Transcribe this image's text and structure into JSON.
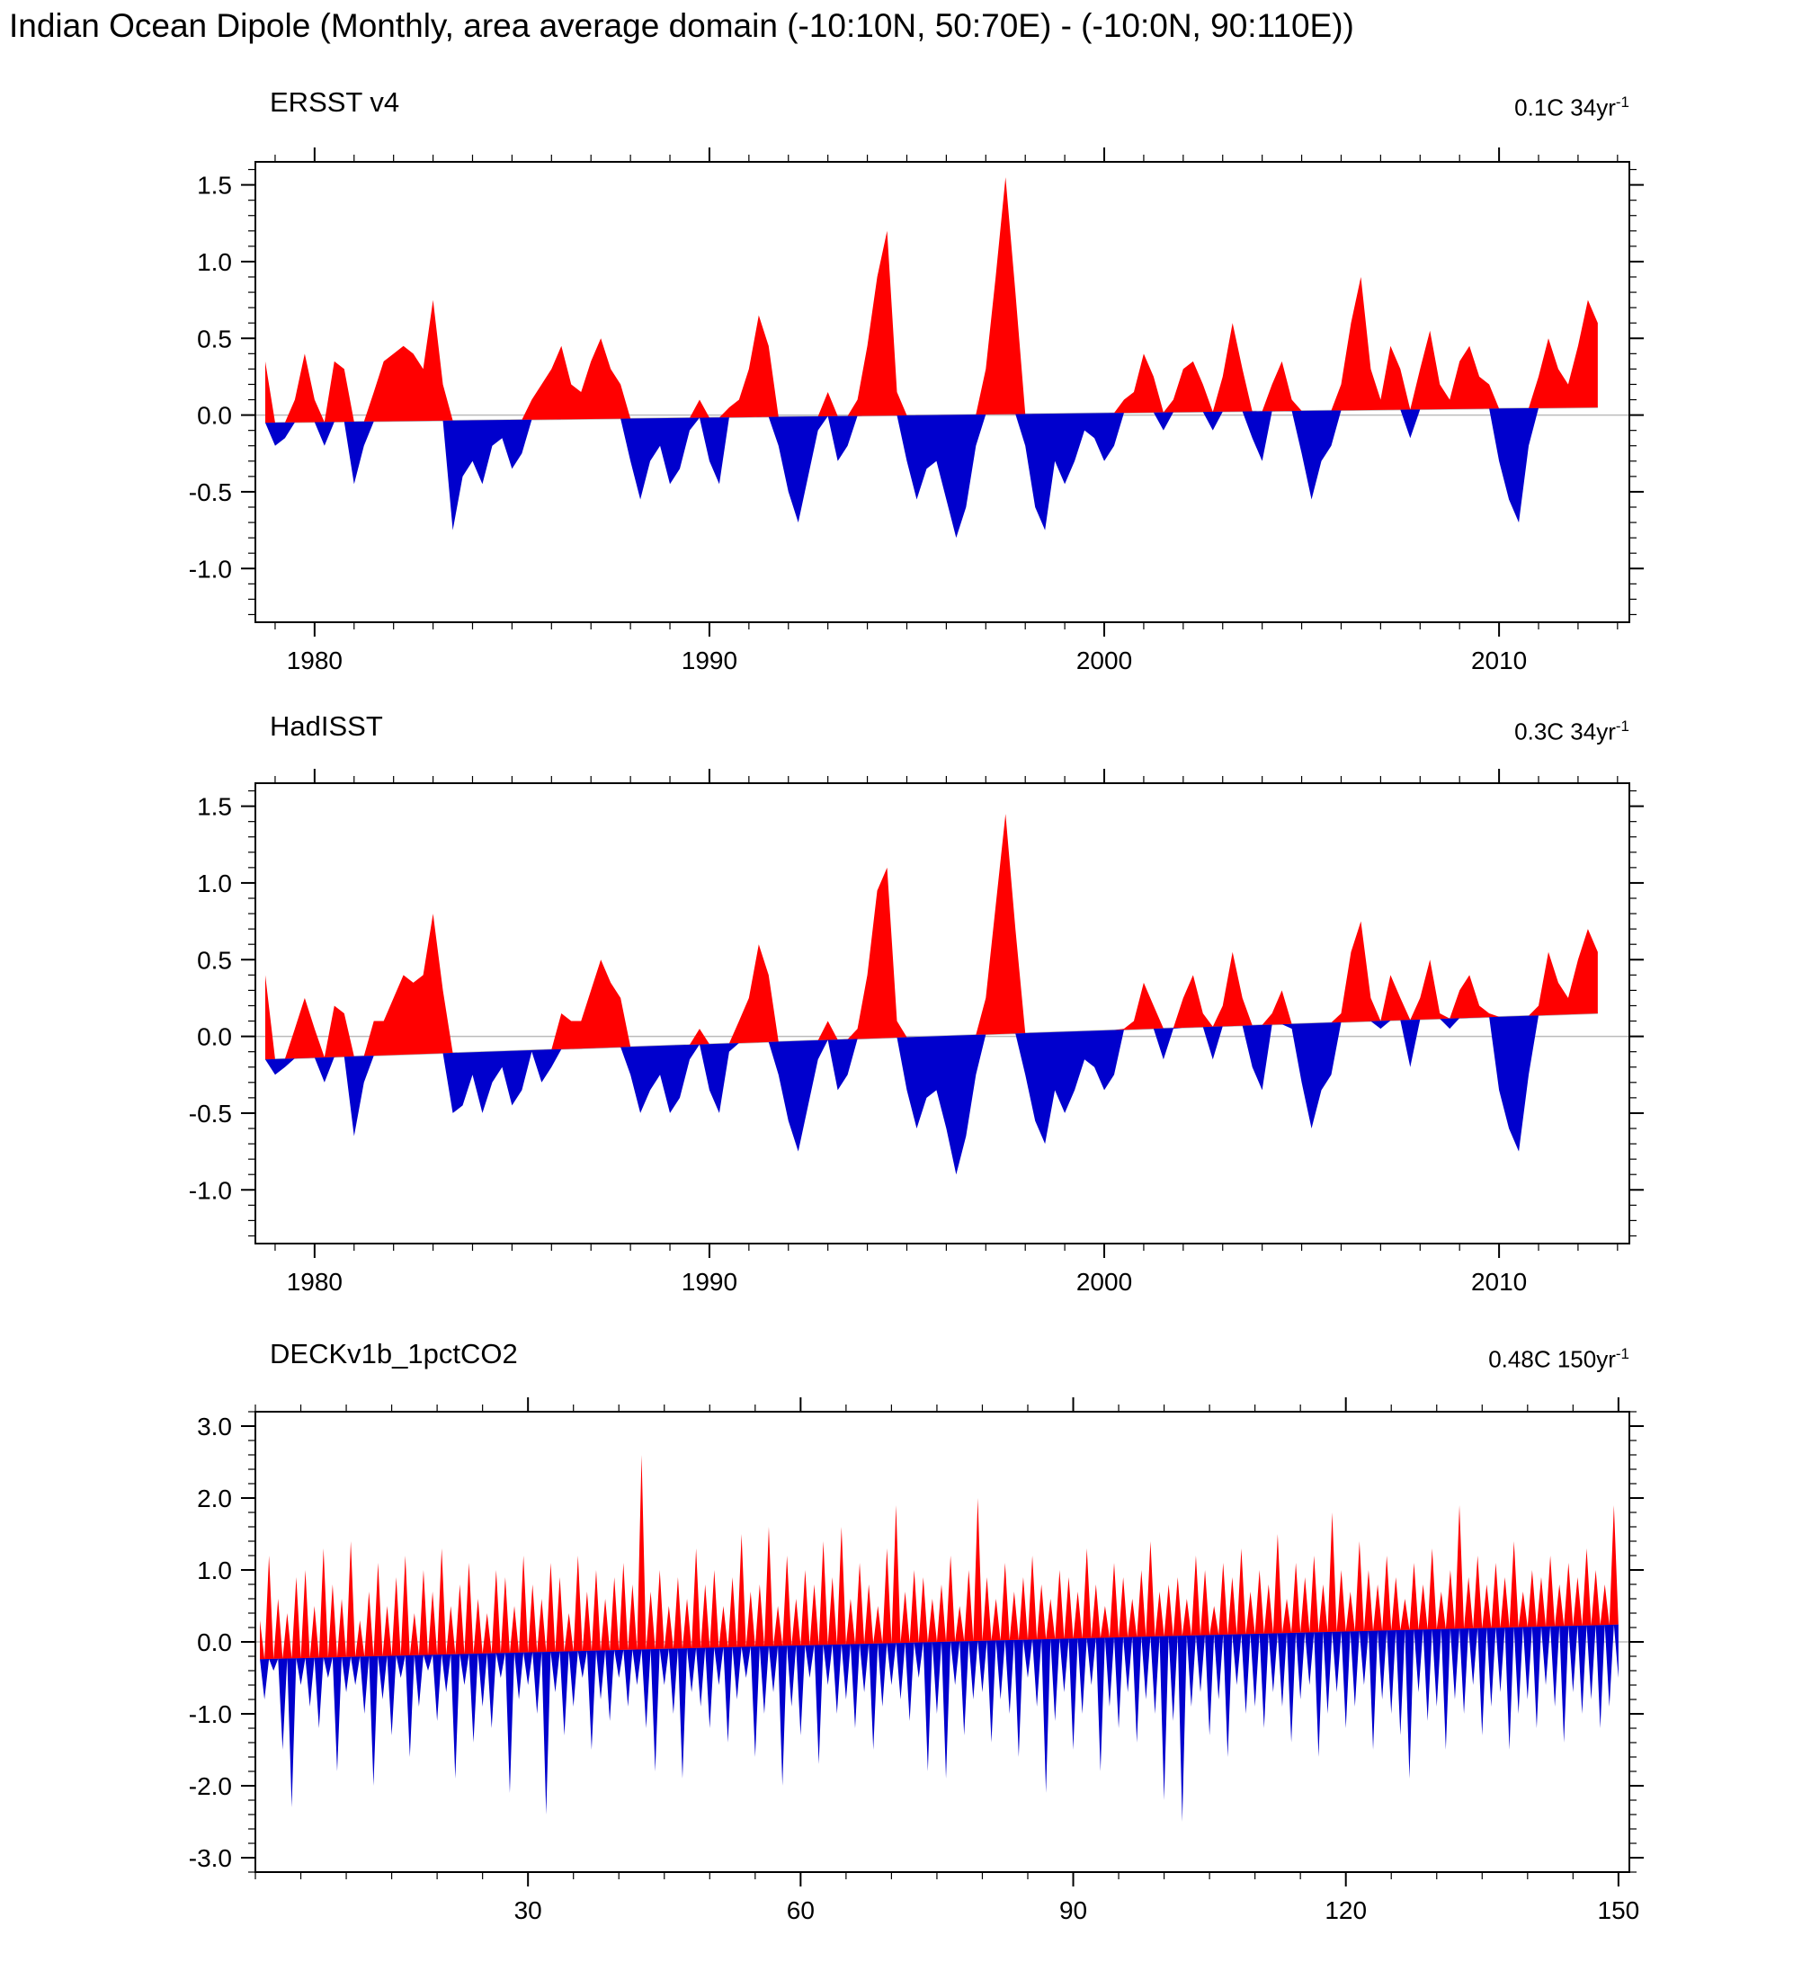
{
  "page_title": "Indian Ocean Dipole (Monthly, area average domain (-10:10N, 50:70E) - (-10:0N, 90:110E))",
  "colors": {
    "positive": "#ff0000",
    "negative": "#0000cd",
    "axis": "#000000",
    "reference_line": "#bbbbbb"
  },
  "chart_data": [
    {
      "type": "area",
      "title": "ERSST v4",
      "trend_label": "0.1C 34yr",
      "trend_sup": "-1",
      "trend_total": 0.1,
      "x_start": 1978.75,
      "x_step": 0.25,
      "xlim": [
        1978.5,
        2013.3
      ],
      "ylim": [
        -1.35,
        1.65
      ],
      "x_ticks": [
        1980,
        1990,
        2000,
        2010
      ],
      "x_tick_labels": [
        "1980",
        "1990",
        "2000",
        "2010"
      ],
      "x_minor_step": 1,
      "y_ticks": [
        -1.0,
        -0.5,
        0.0,
        0.5,
        1.0,
        1.5
      ],
      "y_tick_labels": [
        "-1.0",
        "-0.5",
        "0.0",
        "0.5",
        "1.0",
        "1.5"
      ],
      "y_minor_step": 0.1,
      "values": [
        0.35,
        -0.2,
        -0.15,
        0.1,
        0.4,
        0.1,
        -0.2,
        0.35,
        0.3,
        -0.45,
        -0.2,
        0.15,
        0.35,
        0.4,
        0.45,
        0.4,
        0.3,
        0.75,
        0.2,
        -0.75,
        -0.4,
        -0.3,
        -0.45,
        -0.2,
        -0.15,
        -0.35,
        -0.25,
        0.1,
        0.2,
        0.3,
        0.45,
        0.2,
        0.15,
        0.35,
        0.5,
        0.3,
        0.2,
        -0.3,
        -0.55,
        -0.3,
        -0.2,
        -0.45,
        -0.35,
        -0.1,
        0.1,
        -0.3,
        -0.45,
        0.05,
        0.1,
        0.3,
        0.65,
        0.45,
        -0.2,
        -0.5,
        -0.7,
        -0.4,
        -0.1,
        0.15,
        -0.3,
        -0.2,
        0.1,
        0.45,
        0.9,
        1.2,
        0.15,
        -0.3,
        -0.55,
        -0.35,
        -0.3,
        -0.55,
        -0.8,
        -0.6,
        -0.2,
        0.3,
        0.9,
        1.55,
        0.8,
        -0.2,
        -0.6,
        -0.75,
        -0.3,
        -0.45,
        -0.3,
        -0.1,
        -0.15,
        -0.3,
        -0.2,
        0.1,
        0.15,
        0.4,
        0.25,
        -0.1,
        0.1,
        0.3,
        0.35,
        0.2,
        -0.1,
        0.25,
        0.6,
        0.3,
        -0.15,
        -0.3,
        0.2,
        0.35,
        0.1,
        -0.25,
        -0.55,
        -0.3,
        -0.2,
        0.2,
        0.6,
        0.9,
        0.3,
        0.1,
        0.45,
        0.3,
        -0.15,
        0.3,
        0.55,
        0.2,
        0.1,
        0.35,
        0.45,
        0.25,
        0.2,
        -0.3,
        -0.55,
        -0.7,
        -0.2,
        0.25,
        0.5,
        0.3,
        0.2,
        0.45,
        0.75,
        0.6
      ]
    },
    {
      "type": "area",
      "title": "HadISST",
      "trend_label": "0.3C 34yr",
      "trend_sup": "-1",
      "trend_total": 0.3,
      "x_start": 1978.75,
      "x_step": 0.25,
      "xlim": [
        1978.5,
        2013.3
      ],
      "ylim": [
        -1.35,
        1.65
      ],
      "x_ticks": [
        1980,
        1990,
        2000,
        2010
      ],
      "x_tick_labels": [
        "1980",
        "1990",
        "2000",
        "2010"
      ],
      "x_minor_step": 1,
      "y_ticks": [
        -1.0,
        -0.5,
        0.0,
        0.5,
        1.0,
        1.5
      ],
      "y_tick_labels": [
        "-1.0",
        "-0.5",
        "0.0",
        "0.5",
        "1.0",
        "1.5"
      ],
      "y_minor_step": 0.1,
      "values": [
        0.4,
        -0.25,
        -0.2,
        0.05,
        0.25,
        0.05,
        -0.3,
        0.2,
        0.15,
        -0.65,
        -0.3,
        0.1,
        0.1,
        0.25,
        0.4,
        0.35,
        0.4,
        0.8,
        0.3,
        -0.5,
        -0.45,
        -0.25,
        -0.5,
        -0.3,
        -0.2,
        -0.45,
        -0.35,
        -0.1,
        -0.3,
        -0.2,
        0.15,
        0.1,
        0.1,
        0.3,
        0.5,
        0.35,
        0.25,
        -0.25,
        -0.5,
        -0.35,
        -0.25,
        -0.5,
        -0.4,
        -0.15,
        0.05,
        -0.35,
        -0.5,
        -0.1,
        0.1,
        0.25,
        0.6,
        0.4,
        -0.25,
        -0.55,
        -0.75,
        -0.45,
        -0.15,
        0.1,
        -0.35,
        -0.25,
        0.05,
        0.4,
        0.95,
        1.1,
        0.1,
        -0.35,
        -0.6,
        -0.4,
        -0.35,
        -0.6,
        -0.9,
        -0.65,
        -0.25,
        0.25,
        0.85,
        1.45,
        0.7,
        -0.25,
        -0.55,
        -0.7,
        -0.35,
        -0.5,
        -0.35,
        -0.15,
        -0.2,
        -0.35,
        -0.25,
        0.05,
        0.1,
        0.35,
        0.2,
        -0.15,
        0.05,
        0.25,
        0.4,
        0.15,
        -0.15,
        0.2,
        0.55,
        0.25,
        -0.2,
        -0.35,
        0.15,
        0.3,
        0.05,
        -0.3,
        -0.6,
        -0.35,
        -0.25,
        0.15,
        0.55,
        0.75,
        0.25,
        0.05,
        0.4,
        0.25,
        -0.2,
        0.25,
        0.5,
        0.15,
        0.05,
        0.3,
        0.4,
        0.2,
        0.15,
        -0.35,
        -0.6,
        -0.75,
        -0.25,
        0.2,
        0.55,
        0.35,
        0.25,
        0.5,
        0.7,
        0.55
      ]
    },
    {
      "type": "area",
      "title": "DECKv1b_1pctCO2",
      "trend_label": "0.48C 150yr",
      "trend_sup": "-1",
      "trend_total": 0.48,
      "x_start": 0.5,
      "x_step": 0.5,
      "xlim": [
        0,
        151.2
      ],
      "ylim": [
        -3.2,
        3.2
      ],
      "x_ticks": [
        30,
        60,
        90,
        120,
        150
      ],
      "x_tick_labels": [
        "30",
        "60",
        "90",
        "120",
        "150"
      ],
      "x_minor_step": 5,
      "y_ticks": [
        -3.0,
        -2.0,
        -1.0,
        0.0,
        1.0,
        2.0,
        3.0
      ],
      "y_tick_labels": [
        "-3.0",
        "-2.0",
        "-1.0",
        "0.0",
        "1.0",
        "2.0",
        "3.0"
      ],
      "y_minor_step": 0.2,
      "values": [
        0.3,
        -0.8,
        1.2,
        -0.4,
        0.6,
        -1.5,
        0.4,
        -2.3,
        0.9,
        -0.6,
        1.0,
        -0.9,
        0.5,
        -1.2,
        1.3,
        -0.5,
        0.8,
        -1.8,
        0.6,
        -0.7,
        1.4,
        -0.6,
        0.3,
        -1.0,
        0.7,
        -2.0,
        1.1,
        -0.8,
        0.5,
        -1.3,
        0.9,
        -0.5,
        1.2,
        -1.6,
        0.4,
        -0.9,
        1.0,
        -0.4,
        0.7,
        -1.1,
        1.3,
        -0.7,
        0.5,
        -1.9,
        0.8,
        -0.6,
        1.1,
        -1.4,
        0.6,
        -0.9,
        0.4,
        -1.2,
        1.0,
        -0.5,
        0.9,
        -2.1,
        0.5,
        -0.8,
        1.2,
        -0.6,
        0.8,
        -1.0,
        0.6,
        -2.4,
        1.1,
        -0.7,
        0.9,
        -1.3,
        0.4,
        -0.9,
        1.2,
        -0.5,
        0.7,
        -1.5,
        1.0,
        -0.8,
        0.6,
        -1.1,
        0.9,
        -0.5,
        1.1,
        -0.9,
        0.8,
        -0.6,
        2.6,
        -1.2,
        0.7,
        -1.8,
        1.0,
        -0.6,
        0.5,
        -1.0,
        0.9,
        -1.9,
        0.6,
        -0.7,
        1.3,
        -0.9,
        0.8,
        -1.2,
        1.0,
        -0.6,
        0.5,
        -1.4,
        0.9,
        -0.8,
        1.5,
        -0.5,
        0.7,
        -1.6,
        0.8,
        -1.0,
        1.6,
        -0.7,
        0.5,
        -2.0,
        1.2,
        -0.9,
        0.6,
        -1.3,
        1.0,
        -0.5,
        0.8,
        -1.7,
        1.4,
        -0.6,
        0.9,
        -1.0,
        1.6,
        -0.8,
        0.6,
        -1.2,
        1.1,
        -0.7,
        0.8,
        -1.5,
        0.5,
        -0.9,
        1.3,
        -0.6,
        1.9,
        -0.8,
        0.7,
        -1.1,
        1.0,
        -0.5,
        0.9,
        -1.8,
        0.6,
        -1.0,
        0.8,
        -1.9,
        1.2,
        -0.6,
        0.5,
        -1.3,
        1.0,
        -0.8,
        2.0,
        -0.7,
        0.9,
        -1.4,
        0.6,
        -0.8,
        1.1,
        -1.0,
        0.7,
        -1.6,
        0.9,
        -0.5,
        1.2,
        -0.9,
        0.8,
        -2.1,
        0.6,
        -1.1,
        1.0,
        -0.7,
        0.9,
        -1.5,
        0.7,
        -1.0,
        1.3,
        -0.6,
        0.8,
        -1.8,
        0.5,
        -0.9,
        1.1,
        -1.2,
        0.9,
        -0.7,
        0.6,
        -1.4,
        1.0,
        -0.8,
        1.4,
        -1.0,
        0.7,
        -2.2,
        0.8,
        -1.1,
        0.9,
        -2.5,
        0.6,
        -0.9,
        1.2,
        -0.7,
        1.0,
        -1.3,
        0.5,
        -0.8,
        1.1,
        -1.6,
        0.9,
        -0.6,
        1.3,
        -1.0,
        0.7,
        -0.9,
        1.0,
        -1.2,
        0.8,
        -0.7,
        1.5,
        -0.9,
        0.6,
        -1.4,
        1.1,
        -0.8,
        0.9,
        -0.6,
        1.2,
        -1.6,
        0.8,
        -1.0,
        1.8,
        -0.7,
        1.0,
        -1.2,
        0.7,
        -0.9,
        1.4,
        -0.6,
        1.0,
        -1.5,
        0.8,
        -0.8,
        1.2,
        -1.0,
        0.9,
        -1.3,
        0.6,
        -1.9,
        1.1,
        -0.7,
        0.8,
        -1.1,
        1.3,
        -0.9,
        0.7,
        -1.5,
        1.0,
        -0.8,
        1.9,
        -1.0,
        0.9,
        -0.6,
        1.2,
        -1.3,
        0.8,
        -0.9,
        1.1,
        -0.7,
        0.9,
        -1.5,
        1.4,
        -1.0,
        0.7,
        -0.8,
        1.0,
        -1.2,
        0.9,
        -0.6,
        1.2,
        -0.9,
        0.8,
        -1.4,
        1.1,
        -0.7,
        0.9,
        -1.0,
        1.3,
        -0.8,
        1.0,
        -1.2,
        0.8,
        -0.9,
        1.9,
        -0.5
      ]
    }
  ]
}
